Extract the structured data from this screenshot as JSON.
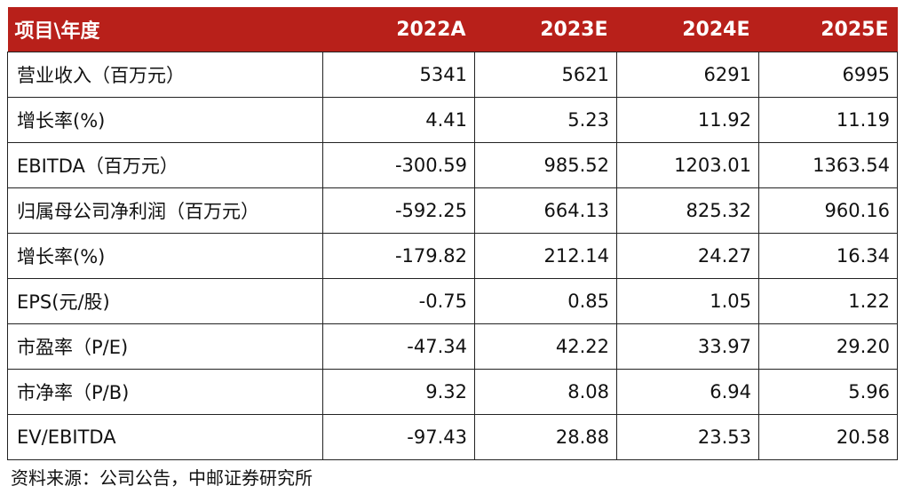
{
  "colors": {
    "header_bg": "#b8201a",
    "header_text": "#ffffff",
    "border": "#222222"
  },
  "table": {
    "headers": [
      "项目\\年度",
      "2022A",
      "2023E",
      "2024E",
      "2025E"
    ],
    "rows": [
      {
        "label": "营业收入（百万元）",
        "values": [
          "5341",
          "5621",
          "6291",
          "6995"
        ]
      },
      {
        "label": "增长率(%)",
        "values": [
          "4.41",
          "5.23",
          "11.92",
          "11.19"
        ]
      },
      {
        "label": "EBITDA（百万元）",
        "values": [
          "-300.59",
          "985.52",
          "1203.01",
          "1363.54"
        ]
      },
      {
        "label": "归属母公司净利润（百万元）",
        "values": [
          "-592.25",
          "664.13",
          "825.32",
          "960.16"
        ]
      },
      {
        "label": "增长率(%)",
        "values": [
          "-179.82",
          "212.14",
          "24.27",
          "16.34"
        ]
      },
      {
        "label": "EPS(元/股)",
        "values": [
          "-0.75",
          "0.85",
          "1.05",
          "1.22"
        ]
      },
      {
        "label": "市盈率（P/E)",
        "values": [
          "-47.34",
          "42.22",
          "33.97",
          "29.20"
        ]
      },
      {
        "label": "市净率（P/B)",
        "values": [
          "9.32",
          "8.08",
          "6.94",
          "5.96"
        ]
      },
      {
        "label": "EV/EBITDA",
        "values": [
          "-97.43",
          "28.88",
          "23.53",
          "20.58"
        ]
      }
    ]
  },
  "source": "资料来源：公司公告，中邮证券研究所"
}
